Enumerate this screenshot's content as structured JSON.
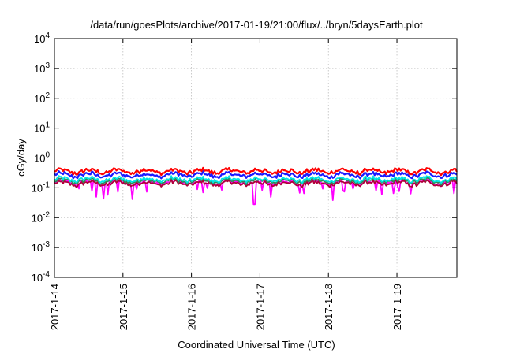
{
  "chart_data": {
    "type": "line",
    "title": "/data/run/goesPlots/archive/2017-01-19/21:00/flux/../bryn/5daysEarth.plot",
    "xlabel": "Coordinated Universal Time (UTC)",
    "ylabel": "cGy/day",
    "y_scale": "log",
    "ylim": [
      0.0001,
      10000
    ],
    "xlim": [
      "2017-01-14 00:00",
      "2017-01-19 21:00"
    ],
    "x_ticks": [
      "2017-1-14",
      "2017-1-15",
      "2017-1-16",
      "2017-1-17",
      "2017-1-18",
      "2017-1-19"
    ],
    "y_ticks": [
      {
        "base": "10",
        "exp": "-4",
        "value": 0.0001
      },
      {
        "base": "10",
        "exp": "-3",
        "value": 0.001
      },
      {
        "base": "10",
        "exp": "-2",
        "value": 0.01
      },
      {
        "base": "10",
        "exp": "-1",
        "value": 0.1
      },
      {
        "base": "10",
        "exp": "0",
        "value": 1
      },
      {
        "base": "10",
        "exp": "1",
        "value": 10
      },
      {
        "base": "10",
        "exp": "2",
        "value": 100
      },
      {
        "base": "10",
        "exp": "3",
        "value": 1000
      },
      {
        "base": "10",
        "exp": "4",
        "value": 10000
      }
    ],
    "grid": true,
    "legend": "none",
    "series": [
      {
        "color": "#ff00ff",
        "typical": 0.15,
        "min": 0.028,
        "min_at": "2017-01-16 22:00"
      },
      {
        "color": "#b0003a",
        "typical": 0.14
      },
      {
        "color": "#2e8b57",
        "typical": 0.17
      },
      {
        "color": "#00e5e5",
        "typical": 0.19
      },
      {
        "color": "#1a1aff",
        "typical": 0.27
      },
      {
        "color": "#ff0000",
        "typical": 0.36
      }
    ]
  }
}
